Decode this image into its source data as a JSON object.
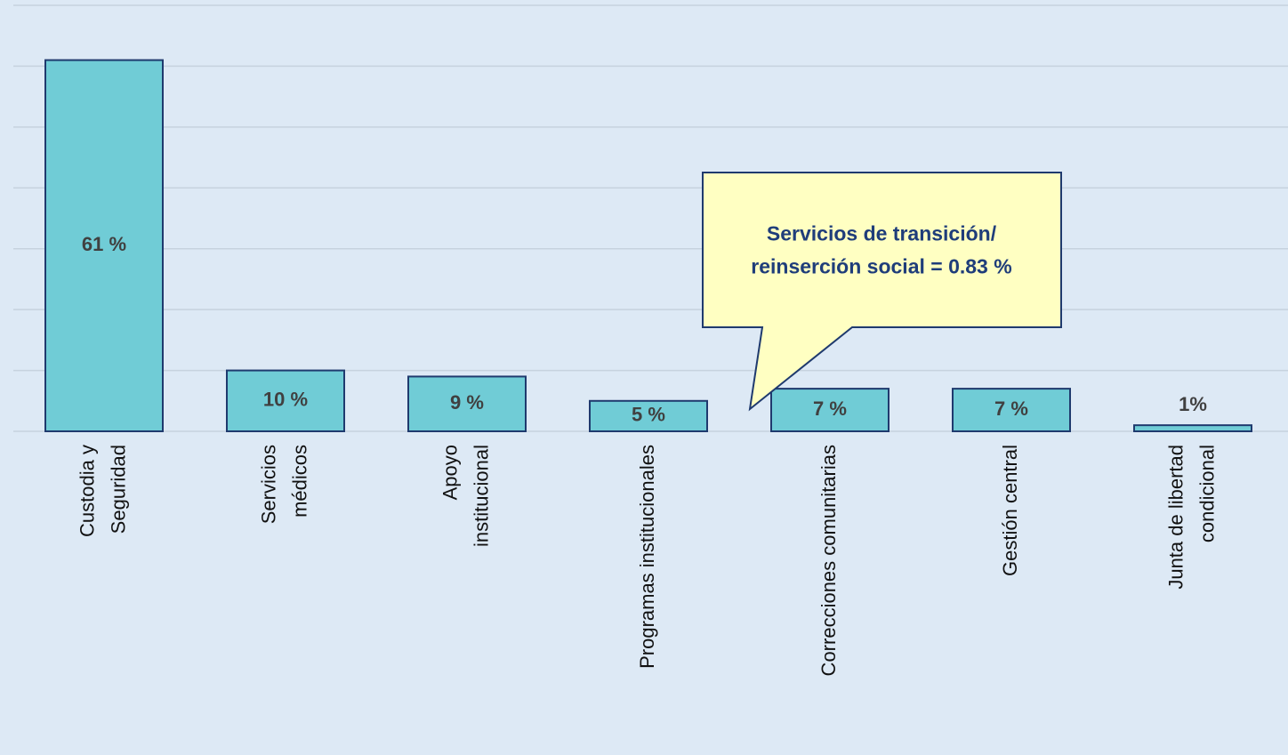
{
  "chart_data": {
    "type": "bar",
    "categories": [
      "Custodia y\nSeguridad",
      "Servicios\nmédicos",
      "Apoyo\ninstitucional",
      "Programas institucionales",
      "Correcciones comunitarias",
      "Gestión central",
      "Junta de libertad\ncondicional"
    ],
    "values": [
      61,
      10,
      9,
      5,
      7,
      7,
      1
    ],
    "value_labels": [
      "61 %",
      "10 %",
      "9 %",
      "5 %",
      "7 %",
      "7 %",
      "1%"
    ],
    "color": "#70ccd6",
    "ylim": [
      0,
      70
    ],
    "yticks": [
      0,
      10,
      20,
      30,
      40,
      50,
      60,
      70
    ],
    "grid": true,
    "annotation": "Servicios de transición/\nreinserción social = 0.83 %"
  }
}
